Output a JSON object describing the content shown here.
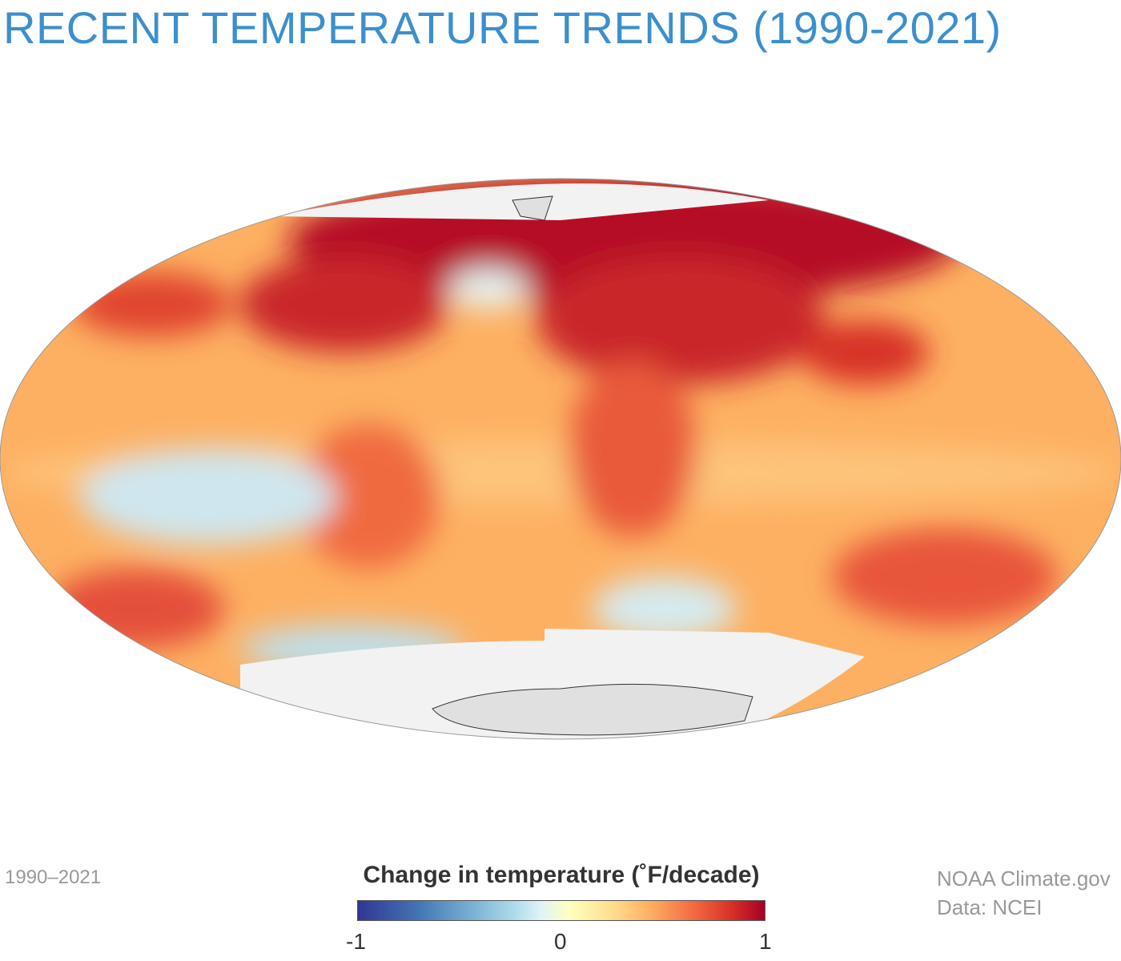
{
  "title": "RECENT TEMPERATURE TRENDS (1990-2021)",
  "period_label": "1990–2021",
  "legend": {
    "title": "Change in temperature (˚F/decade)",
    "min_label": "-1",
    "mid_label": "0",
    "max_label": "1",
    "range": [
      -1,
      1
    ],
    "colors": [
      "#313695",
      "#4575b4",
      "#74add1",
      "#abd9e9",
      "#e0f3f8",
      "#ffffbf",
      "#fee090",
      "#fdae61",
      "#f46d43",
      "#d73027",
      "#a50026"
    ]
  },
  "credits": {
    "source": "NOAA Climate.gov",
    "data": "Data: NCEI"
  },
  "map": {
    "projection": "elliptical global",
    "no_data_color": "#f2f2f2",
    "land_no_data_color": "#e0e0e0"
  }
}
